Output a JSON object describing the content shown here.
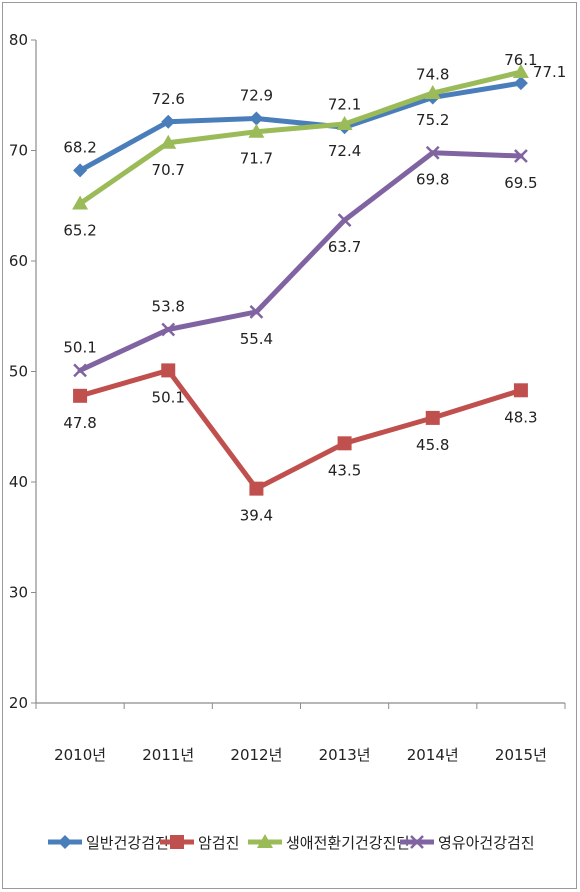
{
  "chart_data": {
    "type": "line",
    "categories": [
      "2010년",
      "2011년",
      "2012년",
      "2013년",
      "2014년",
      "2015년"
    ],
    "ylim": [
      20,
      80
    ],
    "yticks": [
      20,
      30,
      40,
      50,
      60,
      70,
      80
    ],
    "grid": false,
    "legend_position": "bottom",
    "series": [
      {
        "name": "일반건강검진",
        "values": [
          68.2,
          72.6,
          72.9,
          72.1,
          74.8,
          76.1
        ],
        "color": "#4a7ebb",
        "marker": "diamond"
      },
      {
        "name": "암검진",
        "values": [
          47.8,
          50.1,
          39.4,
          43.5,
          45.8,
          48.3
        ],
        "color": "#c0504d",
        "marker": "square"
      },
      {
        "name": "생애전환기건강진단",
        "values": [
          65.2,
          70.7,
          71.7,
          72.4,
          75.2,
          77.1
        ],
        "color": "#9bbb59",
        "marker": "triangle"
      },
      {
        "name": "영유아건강검진",
        "values": [
          50.1,
          53.8,
          55.4,
          63.7,
          69.8,
          69.5
        ],
        "color": "#8064a2",
        "marker": "x"
      }
    ]
  }
}
